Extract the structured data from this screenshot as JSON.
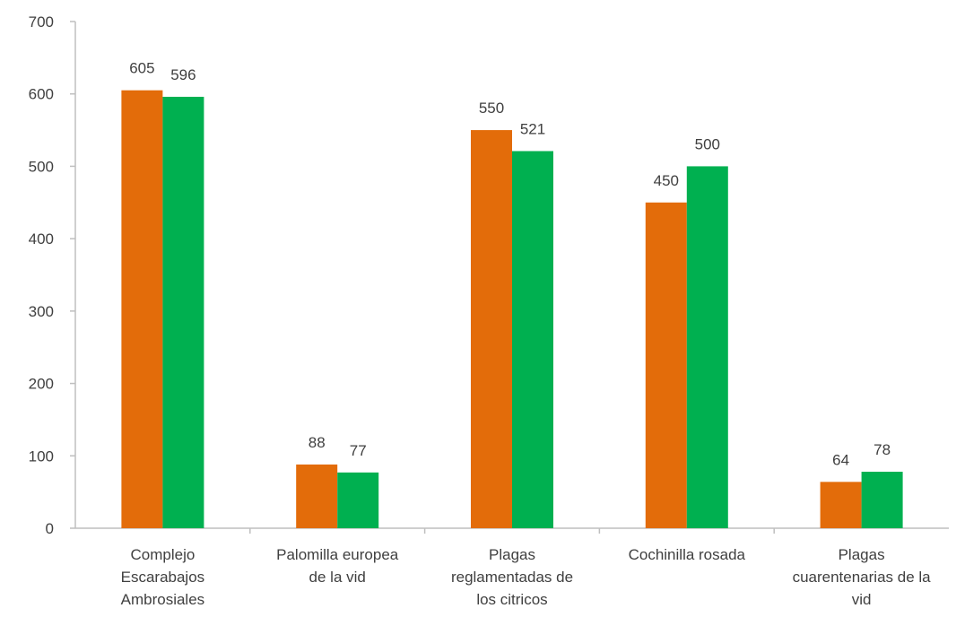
{
  "chart_data": {
    "type": "bar",
    "categories": [
      [
        "Complejo",
        "Escarabajos",
        "Ambrosiales"
      ],
      [
        "Palomilla europea",
        "de la vid"
      ],
      [
        "Plagas",
        "reglamentadas de",
        "los citricos"
      ],
      [
        "Cochinilla rosada"
      ],
      [
        "Plagas",
        "cuarentenarias de la",
        "vid"
      ]
    ],
    "series": [
      {
        "color": "#e36c0a",
        "values": [
          605,
          88,
          550,
          450,
          64
        ]
      },
      {
        "color": "#00b050",
        "values": [
          596,
          77,
          521,
          500,
          78
        ]
      }
    ],
    "ylim": [
      0,
      700
    ],
    "yticks": [
      0,
      100,
      200,
      300,
      400,
      500,
      600,
      700
    ],
    "data_labels": true,
    "grid": false,
    "legend": "none"
  }
}
